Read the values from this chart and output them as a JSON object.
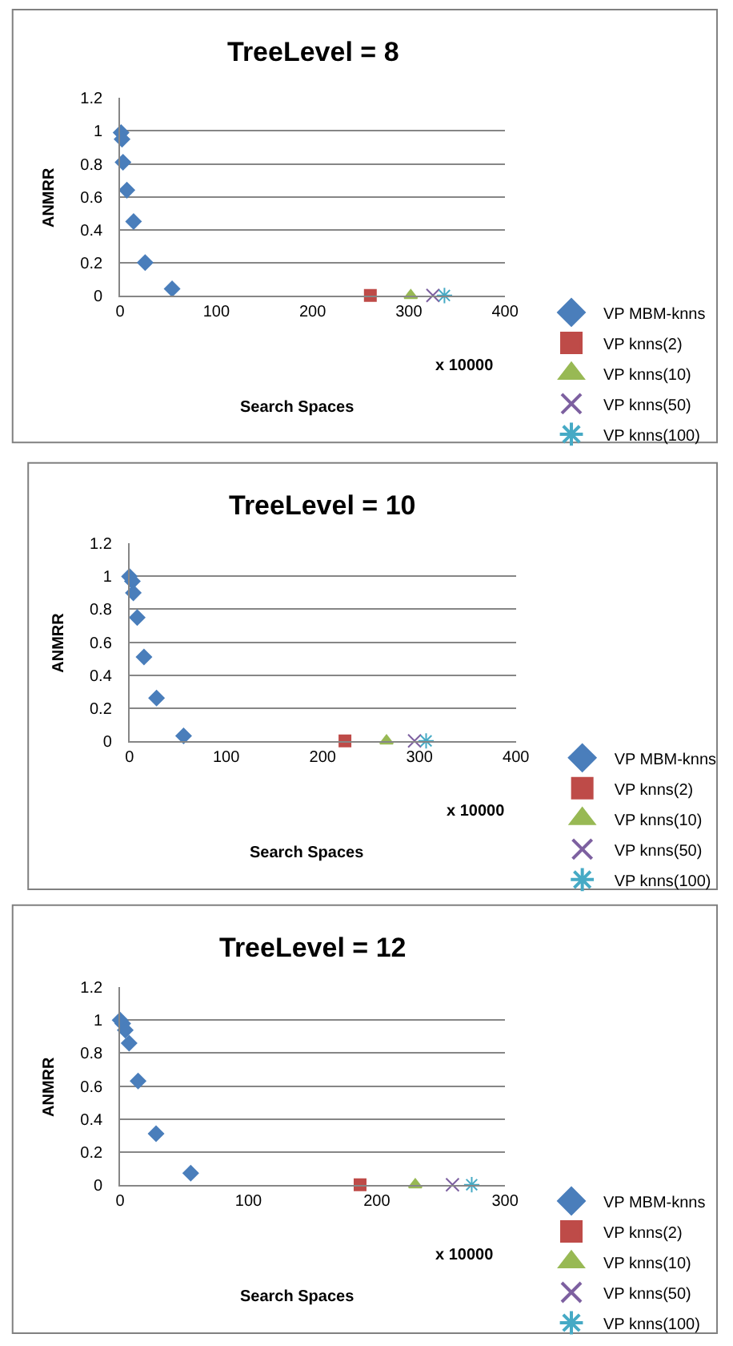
{
  "chart_data": [
    {
      "type": "scatter",
      "title": "TreeLevel = 8",
      "xlabel": "Search Spaces",
      "ylabel": "ANMRR",
      "annotations": [
        "x 10000"
      ],
      "xlim": [
        0,
        400
      ],
      "xticks": [
        0,
        100,
        200,
        300,
        400
      ],
      "ylim": [
        0,
        1.2
      ],
      "yticks": [
        0,
        0.2,
        0.4,
        0.6,
        0.8,
        1,
        1.2
      ],
      "grid": "y",
      "legend": "right",
      "series": [
        {
          "name": "VP MBM-knns",
          "color": "#4a7ebb",
          "marker": "diamond",
          "x": [
            1,
            2,
            3,
            7,
            14,
            26,
            54
          ],
          "values": [
            0.99,
            0.95,
            0.81,
            0.64,
            0.45,
            0.2,
            0.04
          ]
        },
        {
          "name": "VP knns(2)",
          "color": "#be4b48",
          "marker": "square",
          "x": [
            260
          ],
          "values": [
            0
          ]
        },
        {
          "name": "VP knns(10)",
          "color": "#98b954",
          "marker": "triangle",
          "x": [
            302
          ],
          "values": [
            0
          ]
        },
        {
          "name": "VP knns(50)",
          "color": "#7d60a0",
          "marker": "cross",
          "x": [
            325
          ],
          "values": [
            0
          ]
        },
        {
          "name": "VP knns(100)",
          "color": "#46aac5",
          "marker": "cross",
          "x": [
            337
          ],
          "values": [
            0
          ]
        }
      ]
    },
    {
      "type": "scatter",
      "title": "TreeLevel = 10",
      "xlabel": "Search Spaces",
      "ylabel": "ANMRR",
      "annotations": [
        "x 10000"
      ],
      "xlim": [
        0,
        400
      ],
      "xticks": [
        0,
        100,
        200,
        300,
        400
      ],
      "ylim": [
        0,
        1.2
      ],
      "yticks": [
        0,
        0.2,
        0.4,
        0.6,
        0.8,
        1,
        1.2
      ],
      "grid": "y",
      "legend": "right",
      "series": [
        {
          "name": "VP MBM-knns",
          "color": "#4a7ebb",
          "marker": "diamond",
          "x": [
            0,
            3,
            4,
            8,
            15,
            28,
            56
          ],
          "values": [
            1.0,
            0.97,
            0.9,
            0.75,
            0.51,
            0.26,
            0.03
          ]
        },
        {
          "name": "VP knns(2)",
          "color": "#be4b48",
          "marker": "square",
          "x": [
            223
          ],
          "values": [
            0
          ]
        },
        {
          "name": "VP knns(10)",
          "color": "#98b954",
          "marker": "triangle",
          "x": [
            266
          ],
          "values": [
            0
          ]
        },
        {
          "name": "VP knns(50)",
          "color": "#7d60a0",
          "marker": "cross",
          "x": [
            295
          ],
          "values": [
            0
          ]
        },
        {
          "name": "VP knns(100)",
          "color": "#46aac5",
          "marker": "cross",
          "x": [
            307
          ],
          "values": [
            0
          ]
        }
      ]
    },
    {
      "type": "scatter",
      "title": "TreeLevel = 12",
      "xlabel": "Search Spaces",
      "ylabel": "ANMRR",
      "annotations": [
        "x 10000"
      ],
      "xlim": [
        0,
        300
      ],
      "xticks": [
        0,
        100,
        200,
        300
      ],
      "ylim": [
        0,
        1.2
      ],
      "yticks": [
        0,
        0.2,
        0.4,
        0.6,
        0.8,
        1,
        1.2
      ],
      "grid": "y",
      "legend": "right",
      "series": [
        {
          "name": "VP MBM-knns",
          "color": "#4a7ebb",
          "marker": "diamond",
          "x": [
            0,
            2,
            4,
            7,
            14,
            28,
            55
          ],
          "values": [
            1.0,
            0.98,
            0.94,
            0.86,
            0.63,
            0.31,
            0.07
          ]
        },
        {
          "name": "VP knns(2)",
          "color": "#be4b48",
          "marker": "square",
          "x": [
            187
          ],
          "values": [
            0
          ]
        },
        {
          "name": "VP knns(10)",
          "color": "#98b954",
          "marker": "triangle",
          "x": [
            230
          ],
          "values": [
            0
          ]
        },
        {
          "name": "VP knns(50)",
          "color": "#7d60a0",
          "marker": "cross",
          "x": [
            259
          ],
          "values": [
            0
          ]
        },
        {
          "name": "VP knns(100)",
          "color": "#46aac5",
          "marker": "cross",
          "x": [
            274
          ],
          "values": [
            0
          ]
        }
      ]
    }
  ]
}
